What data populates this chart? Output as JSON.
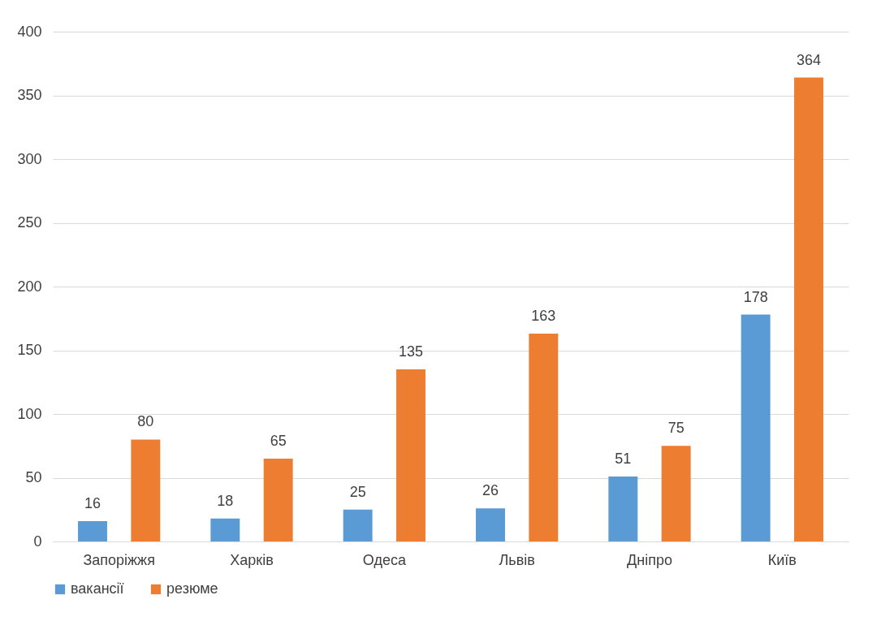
{
  "chart_data": {
    "type": "bar",
    "categories": [
      "Запоріжжя",
      "Харків",
      "Одеса",
      "Львів",
      "Дніпро",
      "Київ"
    ],
    "series": [
      {
        "name": "вакансії",
        "color": "#5b9bd5",
        "values": [
          16,
          18,
          25,
          26,
          51,
          178
        ]
      },
      {
        "name": "резюме",
        "color": "#ed7d31",
        "values": [
          80,
          65,
          135,
          163,
          75,
          364
        ]
      }
    ],
    "ylim": [
      0,
      400
    ],
    "yticks": [
      0,
      50,
      100,
      150,
      200,
      250,
      300,
      350,
      400
    ],
    "grid": "y",
    "legend": "bottom",
    "data_labels": true
  }
}
